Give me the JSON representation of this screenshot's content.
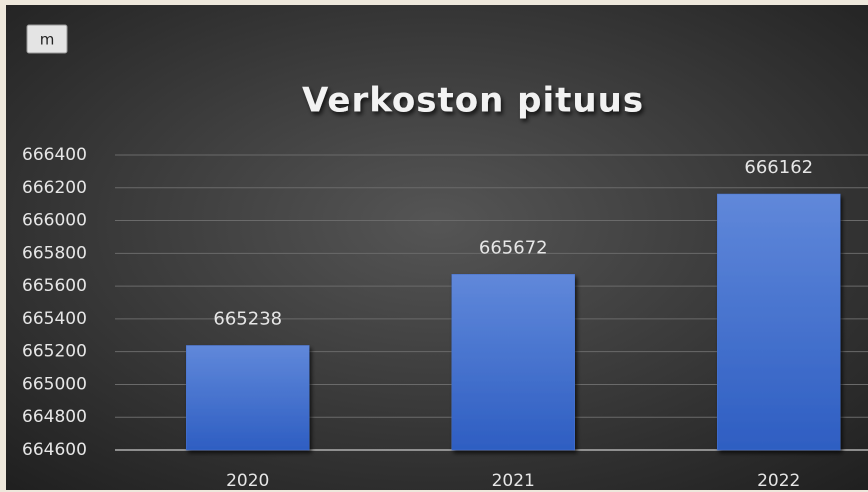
{
  "chart_data": {
    "type": "bar",
    "title": "Verkoston pituus",
    "unit_label": "m",
    "categories": [
      "2020",
      "2021",
      "2022"
    ],
    "values": [
      665238,
      665672,
      666162
    ],
    "color": "#4a74d0",
    "ylim": [
      664600,
      666400
    ],
    "yticks": [
      664600,
      664800,
      665000,
      665200,
      665400,
      665600,
      665800,
      666000,
      666200,
      666400
    ],
    "grid": true
  }
}
